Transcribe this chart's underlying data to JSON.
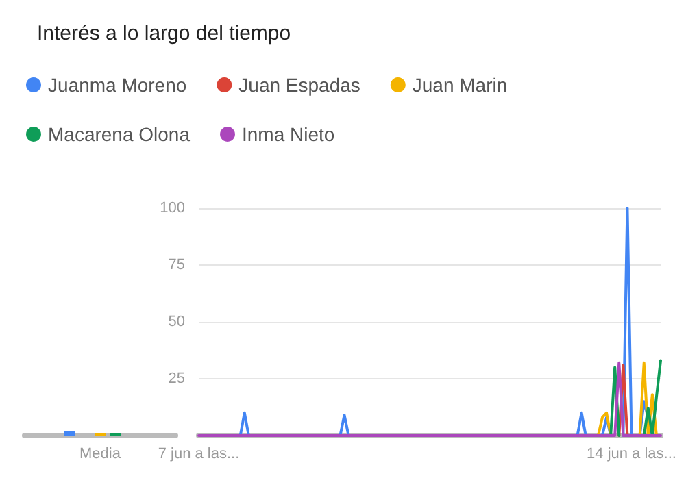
{
  "chart_data": [
    {
      "type": "line",
      "title": "Interés a lo largo del tiempo",
      "legend": "top left",
      "grid": "y",
      "marker": "none",
      "line_style": "solid",
      "categories": [
        "7 jun a las...",
        null,
        null,
        null,
        null,
        null,
        null,
        null,
        null,
        null,
        null,
        null,
        null,
        null,
        null,
        null,
        null,
        null,
        null,
        null,
        null,
        null,
        null,
        null,
        null,
        null,
        null,
        null,
        null,
        null,
        null,
        null,
        null,
        null,
        null,
        null,
        null,
        null,
        null,
        null,
        null,
        null,
        null,
        null,
        null,
        null,
        null,
        null,
        null,
        null,
        null,
        null,
        null,
        null,
        null,
        null,
        null,
        null,
        null,
        null,
        null,
        null,
        null,
        null,
        null,
        null,
        null,
        null,
        null,
        null,
        null,
        null,
        null,
        null,
        null,
        null,
        null,
        null,
        null,
        null,
        null,
        null,
        null,
        null,
        null,
        null,
        null,
        null,
        null,
        null,
        null,
        null,
        null,
        null,
        null,
        null,
        null,
        null,
        null,
        null,
        null,
        null,
        null,
        null,
        "14 jun a las...",
        null,
        null,
        null,
        null,
        null,
        null,
        null
      ],
      "ylim": [
        0,
        100
      ],
      "yticks": [
        25,
        50,
        75,
        100
      ],
      "series": [
        {
          "name": "Juanma Moreno",
          "color": "#4285f4",
          "values": [
            null,
            null,
            null,
            null,
            null,
            null,
            null,
            null,
            null,
            null,
            0,
            10,
            0,
            null,
            null,
            null,
            null,
            null,
            null,
            null,
            null,
            null,
            null,
            null,
            null,
            null,
            null,
            null,
            null,
            null,
            null,
            null,
            null,
            null,
            0,
            9,
            0,
            null,
            null,
            null,
            null,
            null,
            null,
            null,
            null,
            null,
            null,
            null,
            null,
            null,
            null,
            null,
            null,
            null,
            null,
            null,
            null,
            null,
            null,
            null,
            null,
            null,
            null,
            null,
            null,
            null,
            null,
            null,
            null,
            null,
            null,
            null,
            null,
            null,
            null,
            null,
            null,
            null,
            null,
            null,
            null,
            null,
            null,
            null,
            null,
            null,
            null,
            null,
            null,
            null,
            null,
            0,
            10,
            0,
            null,
            null,
            null,
            0,
            8,
            0,
            null,
            null,
            0,
            100,
            0,
            null,
            0,
            15,
            8,
            0,
            null,
            null
          ]
        },
        {
          "name": "Juan Espadas",
          "color": "#db4437",
          "values": [
            null,
            null,
            null,
            null,
            null,
            null,
            null,
            null,
            null,
            null,
            null,
            null,
            null,
            null,
            null,
            null,
            null,
            null,
            null,
            null,
            null,
            null,
            null,
            null,
            null,
            null,
            null,
            null,
            null,
            null,
            null,
            null,
            null,
            null,
            null,
            null,
            null,
            null,
            null,
            null,
            null,
            null,
            null,
            null,
            null,
            null,
            null,
            null,
            null,
            null,
            null,
            null,
            null,
            null,
            null,
            null,
            null,
            null,
            null,
            null,
            null,
            null,
            null,
            null,
            null,
            null,
            null,
            null,
            null,
            null,
            null,
            null,
            null,
            null,
            null,
            null,
            null,
            null,
            null,
            null,
            null,
            null,
            null,
            null,
            null,
            null,
            null,
            null,
            null,
            null,
            null,
            null,
            null,
            null,
            null,
            null,
            null,
            null,
            null,
            null,
            null,
            0,
            31,
            0,
            null,
            null,
            null,
            null,
            null,
            null,
            null,
            null
          ]
        },
        {
          "name": "Juan Marin",
          "color": "#f4b400",
          "values": [
            null,
            null,
            null,
            null,
            null,
            null,
            null,
            null,
            null,
            null,
            null,
            null,
            null,
            null,
            null,
            null,
            null,
            null,
            null,
            null,
            null,
            null,
            null,
            null,
            null,
            null,
            null,
            null,
            null,
            null,
            null,
            null,
            null,
            null,
            null,
            null,
            null,
            null,
            null,
            null,
            null,
            null,
            null,
            null,
            null,
            null,
            null,
            null,
            null,
            null,
            null,
            null,
            null,
            null,
            null,
            null,
            null,
            null,
            null,
            null,
            null,
            null,
            null,
            null,
            null,
            null,
            null,
            null,
            null,
            null,
            null,
            null,
            null,
            null,
            null,
            null,
            null,
            null,
            null,
            null,
            null,
            null,
            null,
            null,
            null,
            null,
            null,
            null,
            null,
            null,
            null,
            null,
            null,
            null,
            null,
            null,
            0,
            8,
            10,
            0,
            null,
            null,
            null,
            null,
            null,
            null,
            0,
            32,
            0,
            18,
            0,
            null
          ]
        },
        {
          "name": "Macarena Olona",
          "color": "#0f9d58",
          "values": [
            null,
            null,
            null,
            null,
            null,
            null,
            null,
            null,
            null,
            null,
            null,
            null,
            null,
            null,
            null,
            null,
            null,
            null,
            null,
            null,
            null,
            null,
            null,
            null,
            null,
            null,
            null,
            null,
            null,
            null,
            null,
            null,
            null,
            null,
            null,
            null,
            null,
            null,
            null,
            null,
            null,
            null,
            null,
            null,
            null,
            null,
            null,
            null,
            null,
            null,
            null,
            null,
            null,
            null,
            null,
            null,
            null,
            null,
            null,
            null,
            null,
            null,
            null,
            null,
            null,
            null,
            null,
            null,
            null,
            null,
            null,
            null,
            null,
            null,
            null,
            null,
            null,
            null,
            null,
            null,
            null,
            null,
            null,
            null,
            null,
            null,
            null,
            null,
            null,
            null,
            null,
            null,
            null,
            null,
            null,
            null,
            null,
            null,
            null,
            0,
            30,
            0,
            null,
            null,
            null,
            null,
            null,
            0,
            12,
            0,
            17,
            33
          ]
        },
        {
          "name": "Inma Nieto",
          "color": "#ab47bc",
          "values": [
            0,
            0,
            0,
            0,
            0,
            0,
            0,
            0,
            0,
            0,
            0,
            0,
            0,
            0,
            0,
            0,
            0,
            0,
            0,
            0,
            0,
            0,
            0,
            0,
            0,
            0,
            0,
            0,
            0,
            0,
            0,
            0,
            0,
            0,
            0,
            0,
            0,
            0,
            0,
            0,
            0,
            0,
            0,
            0,
            0,
            0,
            0,
            0,
            0,
            0,
            0,
            0,
            0,
            0,
            0,
            0,
            0,
            0,
            0,
            0,
            0,
            0,
            0,
            0,
            0,
            0,
            0,
            0,
            0,
            0,
            0,
            0,
            0,
            0,
            0,
            0,
            0,
            0,
            0,
            0,
            0,
            0,
            0,
            0,
            0,
            0,
            0,
            0,
            0,
            0,
            0,
            0,
            0,
            0,
            0,
            0,
            0,
            0,
            0,
            0,
            0,
            32,
            0,
            0,
            0,
            0,
            0,
            0,
            0,
            0,
            0,
            0
          ]
        }
      ]
    },
    {
      "type": "bar",
      "categories": [
        "Media"
      ],
      "ylim": [
        0,
        100
      ],
      "tick_labels": "x",
      "series": [
        {
          "color": "#4285f4",
          "values": [
            2
          ]
        },
        {
          "color": "#db4437",
          "values": [
            0
          ]
        },
        {
          "color": "#f4b400",
          "values": [
            1
          ]
        },
        {
          "color": "#0f9d58",
          "values": [
            1
          ]
        },
        {
          "color": "#ab47bc",
          "values": [
            0
          ]
        }
      ]
    }
  ]
}
